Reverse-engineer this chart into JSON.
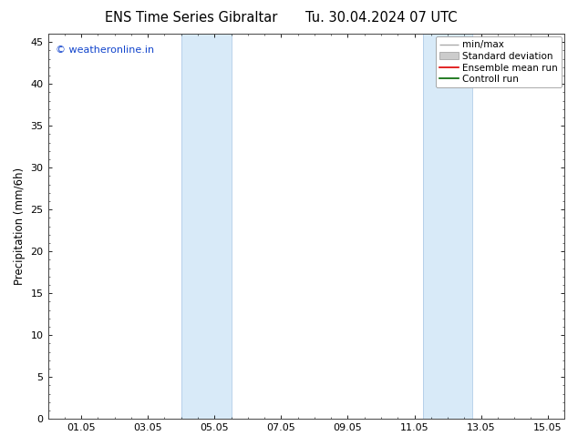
{
  "title_left": "ENS Time Series Gibraltar",
  "title_right": "Tu. 30.04.2024 07 UTC",
  "ylabel": "Precipitation (mm/6h)",
  "ylim": [
    0,
    46
  ],
  "yticks": [
    0,
    5,
    10,
    15,
    20,
    25,
    30,
    35,
    40,
    45
  ],
  "xlim": [
    0.0,
    15.5
  ],
  "xtick_labels": [
    "01.05",
    "03.05",
    "05.05",
    "07.05",
    "09.05",
    "11.05",
    "13.05",
    "15.05"
  ],
  "xtick_positions": [
    1,
    3,
    5,
    7,
    9,
    11,
    13,
    15
  ],
  "shade_bands": [
    {
      "x_start": 4.0,
      "x_end": 5.5
    },
    {
      "x_start": 11.25,
      "x_end": 12.75
    }
  ],
  "shade_color": "#d8eaf8",
  "shade_edge_color": "#b0cce8",
  "watermark": "© weatheronline.in",
  "watermark_color": "#1144cc",
  "legend_items": [
    {
      "label": "min/max"
    },
    {
      "label": "Standard deviation"
    },
    {
      "label": "Ensemble mean run"
    },
    {
      "label": "Controll run"
    }
  ],
  "legend_line_colors": [
    "#aaaaaa",
    "#cccccc",
    "#dd0000",
    "#006600"
  ],
  "background_color": "#ffffff",
  "spine_color": "#444444",
  "title_fontsize": 10.5,
  "ylabel_fontsize": 8.5,
  "tick_fontsize": 8,
  "legend_fontsize": 7.5,
  "watermark_fontsize": 8
}
